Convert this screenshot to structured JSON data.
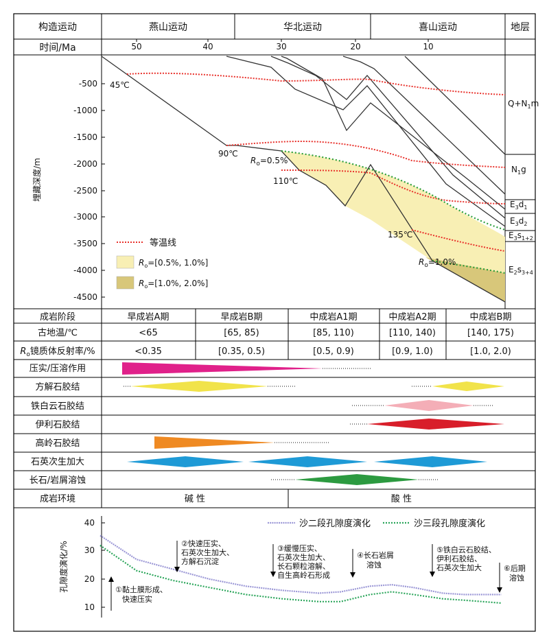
{
  "header": {
    "tectonic_label": "构造运动",
    "yanshan": "燕山运动",
    "huabei": "华北运动",
    "ximalaya": "喜山运动",
    "strata_label": "地层",
    "time_label": "时间/Ma",
    "time_ticks": [
      "50",
      "40",
      "30",
      "20",
      "10"
    ]
  },
  "burial": {
    "ylabel": "埋藏深度/m",
    "depth_ticks": [
      "-500",
      "-1000",
      "-1500",
      "-2000",
      "-2500",
      "-3000",
      "-3500",
      "-4000",
      "-4500"
    ],
    "temps": {
      "t45": "45℃",
      "t90": "90℃",
      "t110": "110℃",
      "t135": "135℃"
    },
    "ro05": {
      "main": "R",
      "sub": "o",
      "rest": "=0.5%"
    },
    "ro10": {
      "main": "R",
      "sub": "o",
      "rest": "=1.0%"
    },
    "strata": {
      "qnm": {
        "a": "Q+N",
        "b": "1",
        "c": "m"
      },
      "ng": {
        "a": "N",
        "b": "1",
        "c": "g"
      },
      "ed1": {
        "a": "E",
        "b": "3",
        "c": "d",
        "d": "1"
      },
      "ed2": {
        "a": "E",
        "b": "3",
        "c": "d",
        "d": "2"
      },
      "es12": {
        "a": "E",
        "b": "3",
        "c": "s",
        "d": "1+2"
      },
      "es34": {
        "a": "E",
        "b": "2",
        "c": "s",
        "d": "3+4"
      }
    },
    "legend": {
      "isotherm": "等温线",
      "range1": "=[0.5%, 1.0%]",
      "range2": "=[1.0%, 2.0%]",
      "ro_main": "R",
      "ro_sub": "o"
    },
    "colors": {
      "isotherm": "#e8302a",
      "ro_low": "#f8efb4",
      "ro_high": "#d8c77a",
      "ro_line": "#2a9d3a"
    }
  },
  "table": {
    "stage_label": "成岩阶段",
    "stages": [
      "早成岩A期",
      "早成岩B期",
      "中成岩A1期",
      "中成岩A2期",
      "中成岩B期"
    ],
    "temp_label": "古地温/℃",
    "temps": [
      "<65",
      "[65, 85)",
      "[85, 110)",
      "[110, 140)",
      "[140, 175)"
    ],
    "ro_label_main": "R",
    "ro_label_sub": "o",
    "ro_label_rest": "镜质体反射率/%",
    "ro_values": [
      "<0.35",
      "[0.35, 0.5)",
      "[0.5, 0.9)",
      "[0.9, 1.0)",
      "[1.0, 2.0)"
    ]
  },
  "processes": [
    {
      "label": "压实/压溶作用",
      "color": "#e0218a"
    },
    {
      "label": "方解石胶结",
      "color": "#f1e34a"
    },
    {
      "label": "铁白云石胶结",
      "color": "#f4aeb7"
    },
    {
      "label": "伊利石胶结",
      "color": "#d81e2a"
    },
    {
      "label": "高岭石胶结",
      "color": "#ef8a23"
    },
    {
      "label": "石英次生加大",
      "color": "#1e9ad6"
    },
    {
      "label": "长石/岩屑溶蚀",
      "color": "#2c9a40"
    }
  ],
  "env": {
    "label": "成岩环境",
    "alkaline": "碱 性",
    "acidic": "酸 性"
  },
  "porosity": {
    "ylabel": "孔隙度演化/%",
    "yticks": [
      "40",
      "30",
      "20",
      "10"
    ],
    "legend1": "沙二段孔隙度演化",
    "legend2": "沙三段孔隙度演化",
    "colors": {
      "s2": "#9b97d6",
      "s3": "#2aa55a"
    },
    "notes": {
      "n1": [
        "①黏土膜形成、",
        "快速压实"
      ],
      "n2": [
        "②快速压实、",
        "石英次生加大、",
        "方解石沉淀"
      ],
      "n3": [
        "③缓慢压实、",
        "石英次生加大、",
        "长石颗粒溶解、",
        "自生高岭石形成"
      ],
      "n4": [
        "④长石岩屑",
        "溶蚀"
      ],
      "n5": [
        "⑤铁白云石胶结、",
        "伊利石胶结、",
        "石英次生加大"
      ],
      "n6": [
        "⑥后期",
        "溶蚀"
      ]
    }
  },
  "chart_data": {
    "type": "line",
    "ylabel": "孔隙度演化/%",
    "ylim": [
      5,
      42
    ],
    "x_unit": "Ma",
    "series": [
      {
        "name": "沙二段孔隙度演化",
        "x": [
          55,
          50,
          45,
          40,
          35,
          30,
          25,
          22,
          18,
          15,
          12,
          8,
          5,
          0
        ],
        "values": [
          35.5,
          27,
          23.5,
          20,
          17.5,
          16,
          15,
          15.5,
          17.5,
          18,
          17,
          15,
          14.5,
          14.5
        ]
      },
      {
        "name": "沙三段孔隙度演化",
        "x": [
          55,
          50,
          45,
          40,
          35,
          30,
          25,
          22,
          18,
          15,
          12,
          8,
          5,
          0
        ],
        "values": [
          32,
          23,
          19.5,
          17,
          14.5,
          13,
          12,
          12,
          14.5,
          15.5,
          14.5,
          13,
          12.5,
          11.5
        ]
      }
    ]
  }
}
